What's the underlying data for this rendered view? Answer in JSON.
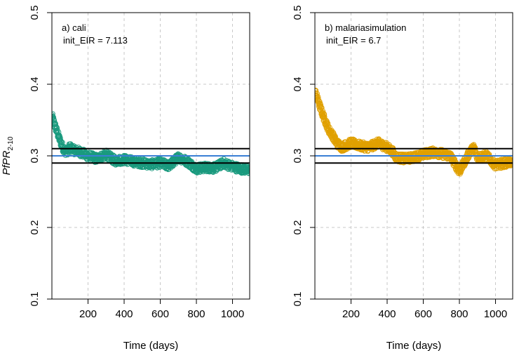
{
  "figure": {
    "ylabel_main": "PfPR",
    "ylabel_sub": "2-10"
  },
  "chart_data": [
    {
      "type": "scatter",
      "panel": "a",
      "annotation": [
        "a) cali",
        "init_EIR = 7.113"
      ],
      "xlabel": "Time (days)",
      "xlim": [
        0,
        1095
      ],
      "ylim": [
        0.1,
        0.5
      ],
      "xticks": [
        "200",
        "400",
        "600",
        "800",
        "1000"
      ],
      "yticks": [
        "0.1",
        "0.2",
        "0.3",
        "0.4",
        "0.5"
      ],
      "grid": true,
      "point_style": "open-circle",
      "color": "#1a9a7e",
      "reference_lines": [
        {
          "y": 0.31,
          "color": "#000000"
        },
        {
          "y": 0.3,
          "color": "#3a7fd5"
        },
        {
          "y": 0.29,
          "color": "#000000"
        }
      ],
      "trend": [
        {
          "x": 1,
          "y": 0.355
        },
        {
          "x": 20,
          "y": 0.34
        },
        {
          "x": 40,
          "y": 0.325
        },
        {
          "x": 60,
          "y": 0.312
        },
        {
          "x": 80,
          "y": 0.305
        },
        {
          "x": 100,
          "y": 0.312
        },
        {
          "x": 120,
          "y": 0.308
        },
        {
          "x": 150,
          "y": 0.306
        },
        {
          "x": 200,
          "y": 0.3
        },
        {
          "x": 250,
          "y": 0.296
        },
        {
          "x": 300,
          "y": 0.302
        },
        {
          "x": 350,
          "y": 0.293
        },
        {
          "x": 400,
          "y": 0.295
        },
        {
          "x": 450,
          "y": 0.292
        },
        {
          "x": 500,
          "y": 0.29
        },
        {
          "x": 550,
          "y": 0.288
        },
        {
          "x": 600,
          "y": 0.29
        },
        {
          "x": 650,
          "y": 0.286
        },
        {
          "x": 700,
          "y": 0.298
        },
        {
          "x": 750,
          "y": 0.292
        },
        {
          "x": 800,
          "y": 0.282
        },
        {
          "x": 850,
          "y": 0.284
        },
        {
          "x": 900,
          "y": 0.283
        },
        {
          "x": 950,
          "y": 0.29
        },
        {
          "x": 1000,
          "y": 0.285
        },
        {
          "x": 1050,
          "y": 0.282
        },
        {
          "x": 1095,
          "y": 0.28
        }
      ]
    },
    {
      "type": "scatter",
      "panel": "b",
      "annotation": [
        "b) malariasimulation",
        "init_EIR = 6.7"
      ],
      "xlabel": "Time (days)",
      "xlim": [
        0,
        1095
      ],
      "ylim": [
        0.1,
        0.5
      ],
      "xticks": [
        "200",
        "400",
        "600",
        "800",
        "1000"
      ],
      "yticks": [
        "0.1",
        "0.2",
        "0.3",
        "0.4",
        "0.5"
      ],
      "grid": true,
      "point_style": "open-circle",
      "color": "#e0a000",
      "reference_lines": [
        {
          "y": 0.31,
          "color": "#000000"
        },
        {
          "y": 0.3,
          "color": "#3a7fd5"
        },
        {
          "y": 0.29,
          "color": "#000000"
        }
      ],
      "trend": [
        {
          "x": 1,
          "y": 0.39
        },
        {
          "x": 20,
          "y": 0.375
        },
        {
          "x": 40,
          "y": 0.36
        },
        {
          "x": 60,
          "y": 0.347
        },
        {
          "x": 80,
          "y": 0.335
        },
        {
          "x": 100,
          "y": 0.328
        },
        {
          "x": 120,
          "y": 0.318
        },
        {
          "x": 150,
          "y": 0.312
        },
        {
          "x": 200,
          "y": 0.318
        },
        {
          "x": 250,
          "y": 0.314
        },
        {
          "x": 300,
          "y": 0.312
        },
        {
          "x": 350,
          "y": 0.318
        },
        {
          "x": 400,
          "y": 0.312
        },
        {
          "x": 430,
          "y": 0.306
        },
        {
          "x": 450,
          "y": 0.298
        },
        {
          "x": 500,
          "y": 0.296
        },
        {
          "x": 550,
          "y": 0.298
        },
        {
          "x": 600,
          "y": 0.302
        },
        {
          "x": 650,
          "y": 0.305
        },
        {
          "x": 700,
          "y": 0.303
        },
        {
          "x": 750,
          "y": 0.3
        },
        {
          "x": 800,
          "y": 0.278
        },
        {
          "x": 850,
          "y": 0.302
        },
        {
          "x": 880,
          "y": 0.312
        },
        {
          "x": 900,
          "y": 0.298
        },
        {
          "x": 950,
          "y": 0.3
        },
        {
          "x": 1000,
          "y": 0.287
        },
        {
          "x": 1050,
          "y": 0.29
        },
        {
          "x": 1095,
          "y": 0.292
        }
      ]
    }
  ]
}
